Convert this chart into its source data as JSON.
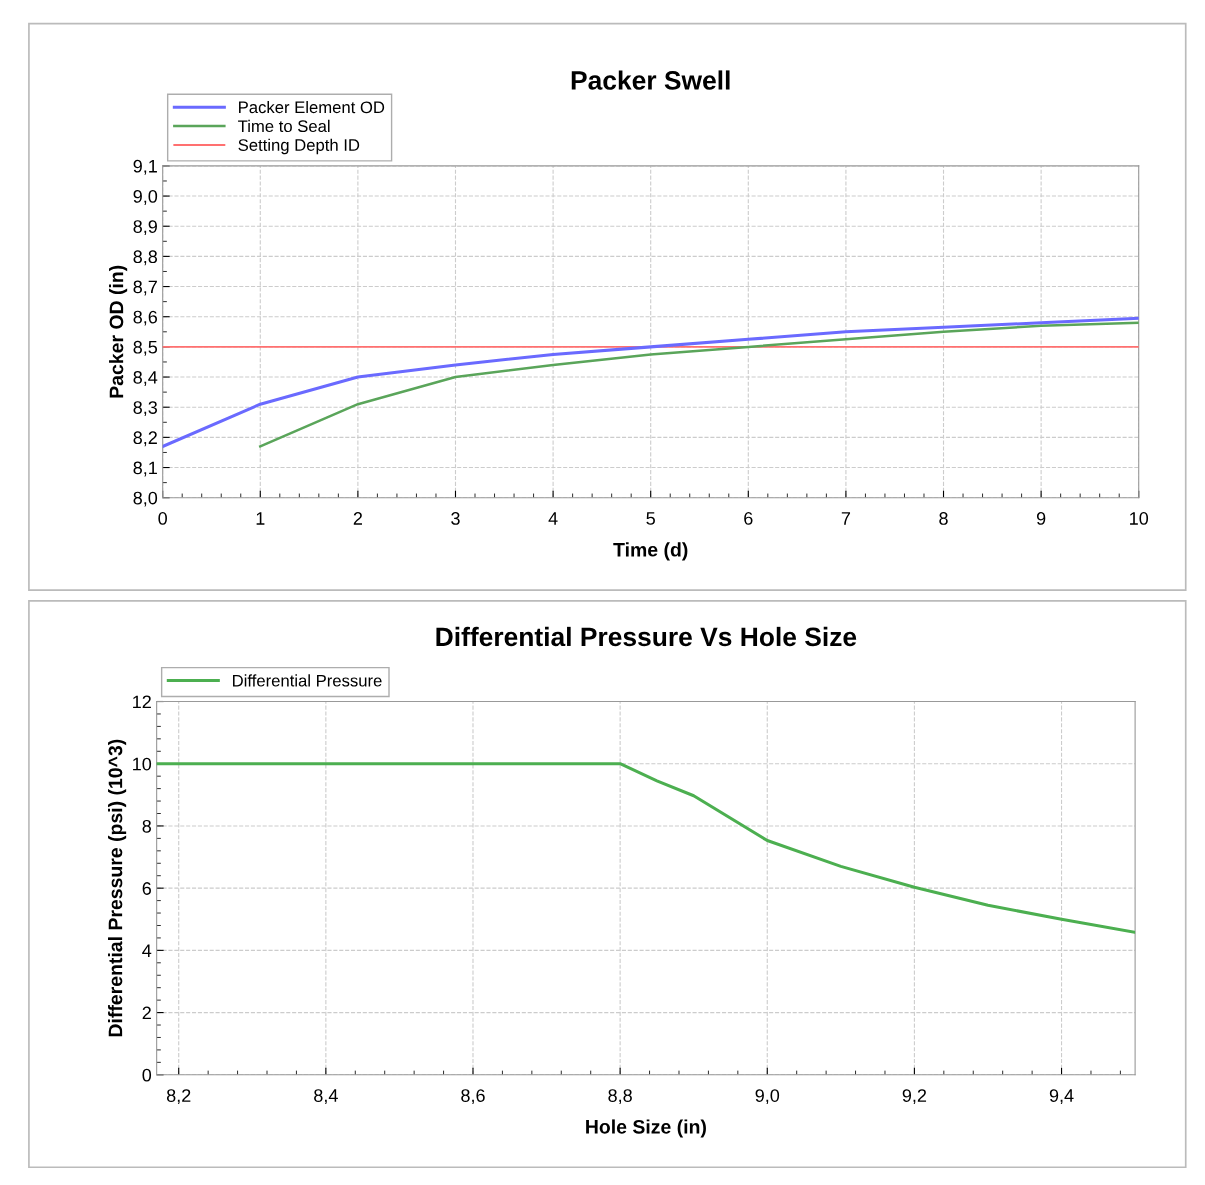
{
  "chart_data": [
    {
      "type": "line",
      "title": "Packer Swell",
      "xlabel": "Time (d)",
      "ylabel": "Packer OD (in)",
      "xlim": [
        0,
        10
      ],
      "xticks": [
        0,
        1,
        2,
        3,
        4,
        5,
        6,
        7,
        8,
        9,
        10
      ],
      "ylim": [
        8.0,
        9.1
      ],
      "yticks": [
        {
          "value": 8.0,
          "label": "8,0"
        },
        {
          "value": 8.1,
          "label": "8,1"
        },
        {
          "value": 8.2,
          "label": "8,2"
        },
        {
          "value": 8.3,
          "label": "8,3"
        },
        {
          "value": 8.4,
          "label": "8,4"
        },
        {
          "value": 8.5,
          "label": "8,5"
        },
        {
          "value": 8.6,
          "label": "8,6"
        },
        {
          "value": 8.7,
          "label": "8,7"
        },
        {
          "value": 8.8,
          "label": "8,8"
        },
        {
          "value": 8.9,
          "label": "8,9"
        },
        {
          "value": 9.0,
          "label": "9,0"
        },
        {
          "value": 9.1,
          "label": "9,1"
        }
      ],
      "grid": true,
      "legend": "top left",
      "series": [
        {
          "name": "Packer Element OD",
          "color": "#6a6aff",
          "x": [
            0,
            1,
            2,
            3,
            4,
            5,
            6,
            7,
            8,
            9,
            10
          ],
          "values": [
            8.17,
            8.31,
            8.4,
            8.44,
            8.475,
            8.5,
            8.525,
            8.55,
            8.565,
            8.58,
            8.595
          ]
        },
        {
          "name": "Time to Seal",
          "color": "#5aa55a",
          "x": [
            1,
            2,
            3,
            4,
            5,
            6,
            7,
            8,
            9,
            10
          ],
          "values": [
            8.17,
            8.31,
            8.4,
            8.44,
            8.475,
            8.5,
            8.525,
            8.55,
            8.57,
            8.58
          ]
        },
        {
          "name": "Setting Depth ID",
          "color": "#ff7070",
          "x": [
            0,
            10
          ],
          "values": [
            8.5,
            8.5
          ]
        }
      ]
    },
    {
      "type": "line",
      "title": "Differential Pressure Vs Hole Size",
      "xlabel": "Hole Size (in)",
      "ylabel": "Differential Pressure (psi) (10^3)",
      "xlim": [
        8.17,
        9.5
      ],
      "xticks": [
        {
          "value": 8.2,
          "label": "8,2"
        },
        {
          "value": 8.4,
          "label": "8,4"
        },
        {
          "value": 8.6,
          "label": "8,6"
        },
        {
          "value": 8.8,
          "label": "8,8"
        },
        {
          "value": 9.0,
          "label": "9,0"
        },
        {
          "value": 9.2,
          "label": "9,2"
        },
        {
          "value": 9.4,
          "label": "9,4"
        }
      ],
      "ylim": [
        0,
        12
      ],
      "yticks": [
        0,
        2,
        4,
        6,
        8,
        10,
        12
      ],
      "grid": true,
      "legend": "top left",
      "series": [
        {
          "name": "Differential Pressure",
          "color": "#4caf50",
          "x": [
            8.17,
            8.8,
            8.85,
            8.9,
            9.0,
            9.1,
            9.2,
            9.3,
            9.4,
            9.5
          ],
          "values": [
            10,
            10,
            9.45,
            8.97,
            7.53,
            6.7,
            6.03,
            5.45,
            5.0,
            4.58
          ]
        }
      ]
    }
  ]
}
